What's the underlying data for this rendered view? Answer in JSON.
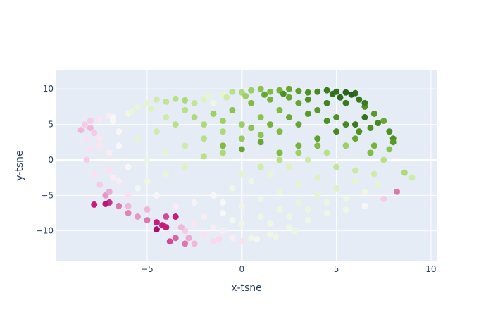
{
  "chart_data": {
    "type": "scatter",
    "xlabel": "x-tsne",
    "ylabel": "y-tsne",
    "xlim": [
      -9.8,
      10.3
    ],
    "ylim": [
      -14.2,
      12.6
    ],
    "x_ticks": [
      -5,
      0,
      5,
      10
    ],
    "x_tick_labels": [
      "−5",
      "0",
      "5",
      "10"
    ],
    "y_ticks": [
      -10,
      -5,
      0,
      5,
      10
    ],
    "y_tick_labels": [
      "−10",
      "−5",
      "0",
      "5",
      "10"
    ],
    "grid": true,
    "legend": "none",
    "colors": {
      "plot_background": "#e5ecf6",
      "grid": "#ffffff",
      "text": "#2a3f5f",
      "colorscale": [
        "#8e0152",
        "#c51b7d",
        "#de77ae",
        "#f1b6da",
        "#fde0ef",
        "#f7f7f7",
        "#e6f5d0",
        "#b8e186",
        "#7fbc41",
        "#4d9221",
        "#276419"
      ]
    },
    "points": [
      [
        -8.5,
        4.2,
        0.3
      ],
      [
        -8.3,
        5.0,
        0.35
      ],
      [
        -8.0,
        4.5,
        0.3
      ],
      [
        -7.8,
        3.8,
        0.35
      ],
      [
        -8.2,
        2.8,
        0.4
      ],
      [
        -7.5,
        5.8,
        0.42
      ],
      [
        -7.0,
        6.2,
        0.45
      ],
      [
        -6.8,
        5.5,
        0.5
      ],
      [
        -6.0,
        6.5,
        0.55
      ],
      [
        -5.5,
        7.5,
        0.58
      ],
      [
        -5.0,
        8.0,
        0.6
      ],
      [
        -4.5,
        8.5,
        0.65
      ],
      [
        -4.0,
        8.2,
        0.68
      ],
      [
        -3.5,
        8.6,
        0.7
      ],
      [
        -3.0,
        8.4,
        0.72
      ],
      [
        -2.5,
        8.0,
        0.68
      ],
      [
        -2.0,
        8.5,
        0.62
      ],
      [
        -1.5,
        8.0,
        0.55
      ],
      [
        -1.0,
        9.2,
        0.6
      ],
      [
        -0.5,
        9.6,
        0.7
      ],
      [
        0.0,
        9.5,
        0.72
      ],
      [
        0.5,
        9.8,
        0.75
      ],
      [
        1.0,
        10.0,
        0.78
      ],
      [
        1.5,
        9.6,
        0.8
      ],
      [
        2.0,
        9.8,
        0.82
      ],
      [
        2.5,
        10.0,
        0.85
      ],
      [
        3.0,
        9.7,
        0.87
      ],
      [
        3.5,
        9.5,
        0.9
      ],
      [
        4.0,
        9.6,
        0.92
      ],
      [
        4.5,
        9.8,
        0.95
      ],
      [
        5.0,
        9.6,
        0.97
      ],
      [
        5.5,
        9.5,
        1.0
      ],
      [
        6.0,
        9.4,
        0.98
      ],
      [
        6.2,
        8.5,
        0.95
      ],
      [
        6.5,
        7.5,
        0.9
      ],
      [
        7.0,
        6.5,
        0.88
      ],
      [
        7.5,
        5.5,
        0.85
      ],
      [
        8.0,
        3.0,
        0.9
      ],
      [
        7.8,
        1.5,
        0.78
      ],
      [
        8.6,
        -1.8,
        0.72
      ],
      [
        9.0,
        -2.5,
        0.65
      ],
      [
        8.2,
        -4.5,
        0.2
      ],
      [
        7.5,
        -5.5,
        0.35
      ],
      [
        6.5,
        -6.5,
        0.5
      ],
      [
        5.5,
        -7.0,
        0.55
      ],
      [
        4.5,
        -7.5,
        0.55
      ],
      [
        3.5,
        -8.5,
        0.55
      ],
      [
        2.5,
        -9.5,
        0.55
      ],
      [
        1.5,
        -10.5,
        0.55
      ],
      [
        0.5,
        -11.0,
        0.55
      ],
      [
        0.0,
        -11.5,
        0.4
      ],
      [
        -0.5,
        -11.0,
        0.45
      ],
      [
        -1.5,
        -11.5,
        0.38
      ],
      [
        -2.5,
        -11.8,
        0.3
      ],
      [
        -3.0,
        -11.8,
        0.2
      ],
      [
        -3.5,
        -11.0,
        0.18
      ],
      [
        -4.0,
        -9.5,
        0.1
      ],
      [
        -4.5,
        -9.8,
        0.05
      ],
      [
        -4.5,
        -8.8,
        0.1
      ],
      [
        -4.0,
        -8.0,
        0.15
      ],
      [
        -3.5,
        -8.0,
        0.1
      ],
      [
        -5.0,
        -8.5,
        0.2
      ],
      [
        -5.5,
        -8.0,
        0.25
      ],
      [
        -6.0,
        -7.5,
        0.22
      ],
      [
        -6.5,
        -6.5,
        0.2
      ],
      [
        -7.0,
        -6.0,
        0.12
      ],
      [
        -7.2,
        -5.0,
        0.25
      ],
      [
        -7.5,
        -3.5,
        0.35
      ],
      [
        -7.8,
        -2.0,
        0.4
      ],
      [
        -8.2,
        0.0,
        0.35
      ],
      [
        -1.0,
        2.0,
        0.8
      ],
      [
        0.0,
        1.5,
        0.85
      ],
      [
        1.0,
        2.5,
        0.85
      ],
      [
        2.0,
        1.0,
        0.8
      ],
      [
        3.0,
        2.0,
        0.82
      ],
      [
        4.0,
        3.0,
        0.87
      ],
      [
        5.0,
        4.0,
        0.92
      ],
      [
        6.0,
        5.0,
        0.95
      ],
      [
        6.5,
        6.0,
        0.97
      ],
      [
        5.5,
        2.0,
        0.75
      ],
      [
        4.5,
        1.0,
        0.7
      ],
      [
        3.5,
        0.0,
        0.65
      ],
      [
        2.5,
        -1.0,
        0.62
      ],
      [
        1.5,
        -2.0,
        0.58
      ],
      [
        0.5,
        -3.0,
        0.55
      ],
      [
        -0.5,
        -4.0,
        0.55
      ],
      [
        -1.5,
        -5.0,
        0.5
      ],
      [
        -2.5,
        -6.0,
        0.48
      ],
      [
        -3.5,
        -6.5,
        0.45
      ],
      [
        -4.5,
        -5.0,
        0.5
      ],
      [
        -5.5,
        -4.0,
        0.52
      ],
      [
        -6.5,
        -3.0,
        0.45
      ],
      [
        -6.0,
        -1.0,
        0.5
      ],
      [
        -5.0,
        0.0,
        0.55
      ],
      [
        -4.0,
        1.0,
        0.6
      ],
      [
        -3.0,
        2.0,
        0.65
      ],
      [
        -2.0,
        3.0,
        0.7
      ],
      [
        -1.0,
        4.0,
        0.72
      ],
      [
        0.0,
        5.0,
        0.75
      ],
      [
        1.0,
        6.0,
        0.78
      ],
      [
        2.0,
        7.0,
        0.8
      ],
      [
        3.0,
        8.0,
        0.85
      ],
      [
        4.0,
        7.0,
        0.88
      ],
      [
        5.0,
        6.0,
        0.9
      ],
      [
        6.0,
        3.0,
        0.85
      ],
      [
        7.0,
        2.0,
        0.82
      ],
      [
        7.5,
        0.0,
        0.7
      ],
      [
        7.0,
        -2.0,
        0.65
      ],
      [
        6.0,
        -3.0,
        0.6
      ],
      [
        5.0,
        -4.0,
        0.62
      ],
      [
        4.0,
        -5.0,
        0.6
      ],
      [
        3.0,
        -6.0,
        0.58
      ],
      [
        2.0,
        -7.0,
        0.56
      ],
      [
        1.0,
        -8.0,
        0.55
      ],
      [
        0.0,
        -9.0,
        0.55
      ],
      [
        -1.0,
        -10.0,
        0.45
      ],
      [
        -2.0,
        -10.5,
        0.4
      ],
      [
        -3.0,
        -10.0,
        0.35
      ],
      [
        -2.0,
        -8.0,
        0.45
      ],
      [
        -1.0,
        -6.0,
        0.5
      ],
      [
        0.0,
        -2.0,
        0.6
      ],
      [
        1.0,
        -1.0,
        0.65
      ],
      [
        2.0,
        0.0,
        0.7
      ],
      [
        3.0,
        1.0,
        0.75
      ],
      [
        4.0,
        2.0,
        0.8
      ],
      [
        -2.0,
        0.5,
        0.7
      ],
      [
        -3.0,
        -1.0,
        0.62
      ],
      [
        -4.0,
        -2.0,
        0.58
      ],
      [
        -5.0,
        -3.0,
        0.55
      ],
      [
        -6.0,
        -5.0,
        0.4
      ],
      [
        -6.5,
        2.0,
        0.5
      ],
      [
        -7.0,
        1.0,
        0.45
      ],
      [
        -5.5,
        3.0,
        0.6
      ],
      [
        -4.5,
        4.0,
        0.65
      ],
      [
        -3.5,
        5.0,
        0.7
      ],
      [
        -2.5,
        6.0,
        0.72
      ],
      [
        -1.5,
        6.5,
        0.75
      ],
      [
        -0.5,
        7.0,
        0.78
      ],
      [
        0.5,
        8.0,
        0.8
      ],
      [
        1.5,
        8.5,
        0.82
      ],
      [
        2.5,
        8.8,
        0.85
      ],
      [
        3.5,
        8.5,
        0.9
      ],
      [
        4.5,
        8.0,
        0.93
      ],
      [
        5.5,
        8.0,
        0.95
      ],
      [
        6.8,
        4.5,
        0.9
      ],
      [
        3.0,
        5.0,
        0.85
      ],
      [
        2.0,
        4.0,
        0.8
      ],
      [
        1.0,
        3.5,
        0.78
      ],
      [
        0.0,
        3.0,
        0.76
      ],
      [
        -1.0,
        1.0,
        0.72
      ],
      [
        5.0,
        -1.0,
        0.68
      ],
      [
        6.0,
        -1.5,
        0.66
      ],
      [
        4.0,
        -2.5,
        0.62
      ],
      [
        3.0,
        -3.5,
        0.6
      ],
      [
        2.0,
        -4.5,
        0.58
      ],
      [
        1.0,
        -5.5,
        0.56
      ],
      [
        0.0,
        -6.5,
        0.55
      ],
      [
        -1.0,
        -7.5,
        0.5
      ],
      [
        -2.5,
        -9.0,
        0.42
      ],
      [
        -5.0,
        -7.0,
        0.3
      ],
      [
        -6.0,
        -6.5,
        0.3
      ],
      [
        -7.0,
        -4.5,
        0.28
      ],
      [
        -7.5,
        3.0,
        0.42
      ],
      [
        -8.0,
        1.5,
        0.4
      ],
      [
        -6.5,
        4.0,
        0.5
      ],
      [
        5.8,
        9.2,
        1.0
      ],
      [
        5.2,
        8.8,
        0.98
      ],
      [
        4.8,
        9.3,
        0.97
      ],
      [
        6.5,
        8.0,
        0.95
      ],
      [
        7.2,
        5.2,
        0.92
      ],
      [
        7.8,
        4.0,
        0.9
      ],
      [
        8.0,
        2.5,
        0.88
      ],
      [
        2.2,
        9.3,
        0.9
      ],
      [
        1.2,
        9.2,
        0.85
      ],
      [
        0.2,
        9.0,
        0.75
      ],
      [
        -0.8,
        8.8,
        0.65
      ],
      [
        -1.8,
        9.0,
        0.6
      ],
      [
        -4.8,
        7.2,
        0.62
      ],
      [
        -5.8,
        6.8,
        0.58
      ],
      [
        -6.8,
        6.0,
        0.5
      ],
      [
        -7.2,
        -6.2,
        0.08
      ],
      [
        -7.8,
        -6.3,
        0.1
      ],
      [
        -4.2,
        -9.2,
        0.1
      ],
      [
        -3.8,
        -11.5,
        0.15
      ],
      [
        -2.8,
        -11.0,
        0.28
      ],
      [
        -1.2,
        -11.2,
        0.38
      ],
      [
        0.8,
        -11.2,
        0.52
      ],
      [
        1.8,
        -10.8,
        0.55
      ],
      [
        2.8,
        -10.0,
        0.56
      ],
      [
        -8.0,
        5.5,
        0.35
      ],
      [
        -7.5,
        2.0,
        0.42
      ],
      [
        -7.0,
        -1.5,
        0.4
      ],
      [
        -6.8,
        -2.5,
        0.45
      ],
      [
        -4.0,
        6.0,
        0.65
      ],
      [
        -3.0,
        7.0,
        0.7
      ],
      [
        -2.0,
        5.0,
        0.72
      ],
      [
        -1.0,
        5.5,
        0.75
      ],
      [
        0.5,
        4.5,
        0.78
      ],
      [
        1.5,
        5.0,
        0.82
      ],
      [
        2.5,
        6.0,
        0.84
      ],
      [
        3.5,
        6.5,
        0.88
      ],
      [
        4.5,
        5.5,
        0.9
      ],
      [
        5.5,
        5.0,
        0.92
      ],
      [
        6.2,
        4.0,
        0.9
      ],
      [
        6.8,
        1.0,
        0.8
      ],
      [
        7.2,
        -3.5,
        0.6
      ],
      [
        6.5,
        -4.5,
        0.55
      ],
      [
        5.5,
        -5.5,
        0.56
      ],
      [
        4.5,
        -6.0,
        0.57
      ],
      [
        3.5,
        -7.0,
        0.57
      ],
      [
        2.5,
        -8.0,
        0.56
      ],
      [
        1.5,
        -9.0,
        0.55
      ],
      [
        -0.5,
        -8.5,
        0.52
      ],
      [
        -1.5,
        -9.5,
        0.45
      ],
      [
        -3.2,
        -9.5,
        0.3
      ]
    ]
  }
}
